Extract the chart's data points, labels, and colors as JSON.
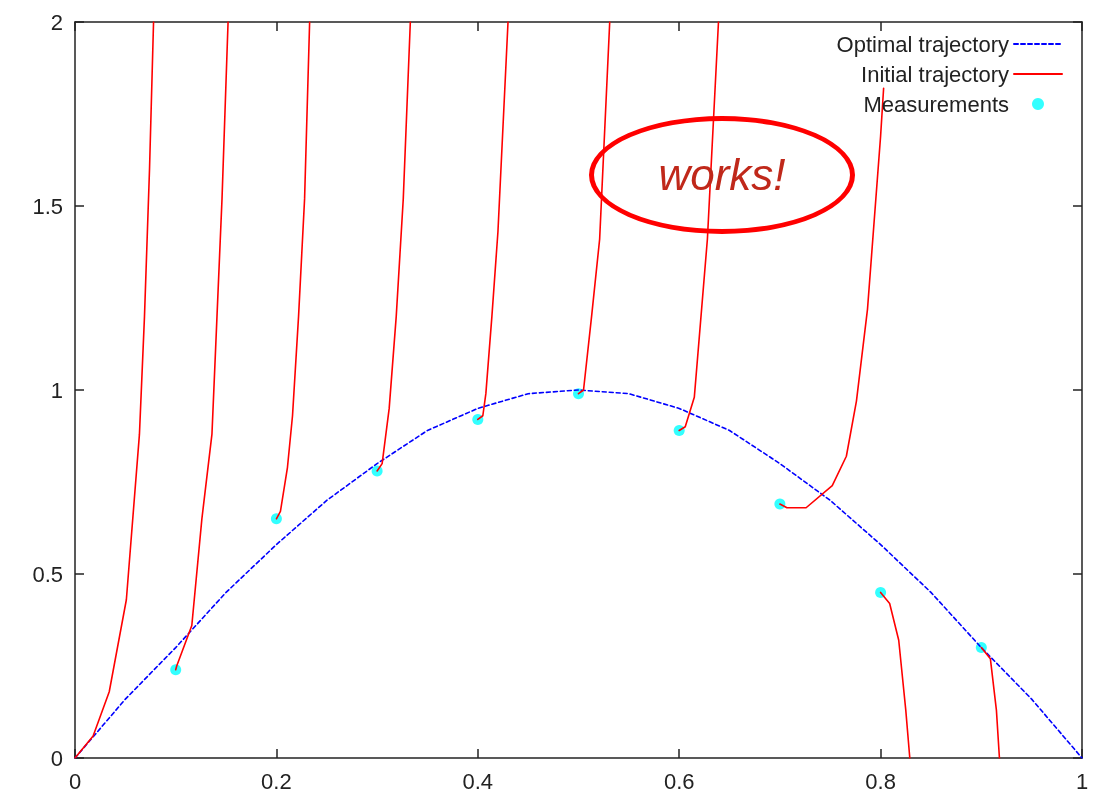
{
  "chart_data": {
    "type": "line",
    "xlim": [
      0,
      1
    ],
    "xticks": [
      0,
      0.2,
      0.4,
      0.6,
      0.8,
      1
    ],
    "ylim": [
      0,
      2
    ],
    "yticks": [
      0,
      0.5,
      1,
      1.5,
      2
    ],
    "grid": false,
    "legend": "top right",
    "annotations": [
      "works!"
    ],
    "series": [
      {
        "name": "Optimal trajectory",
        "color": "#0000ff",
        "line_style": "dashed",
        "marker": "none",
        "x": [
          0,
          0.05,
          0.1,
          0.15,
          0.2,
          0.25,
          0.3,
          0.35,
          0.4,
          0.45,
          0.5,
          0.55,
          0.6,
          0.65,
          0.7,
          0.75,
          0.8,
          0.85,
          0.9,
          0.95,
          1
        ],
        "values": [
          0,
          0.16,
          0.3,
          0.45,
          0.58,
          0.7,
          0.8,
          0.89,
          0.95,
          0.99,
          1.0,
          0.99,
          0.95,
          0.89,
          0.8,
          0.7,
          0.58,
          0.45,
          0.3,
          0.16,
          0
        ]
      },
      {
        "name": "Initial trajectory",
        "color": "#ff0000",
        "line_style": "solid",
        "marker": "none",
        "x": [
          0,
          0.018,
          0.034,
          0.051,
          0.064,
          0.069,
          0.074,
          0.078
        ],
        "values": [
          0,
          0.06,
          0.18,
          0.43,
          0.88,
          1.2,
          1.6,
          2
        ]
      },
      {
        "color": "#ff0000",
        "line_style": "solid",
        "marker": "none",
        "x": [
          0.1,
          0.101,
          0.116,
          0.126,
          0.136,
          0.141,
          0.146,
          0.152
        ],
        "values": [
          0.24,
          0.25,
          0.36,
          0.65,
          0.88,
          1.2,
          1.52,
          2
        ]
      },
      {
        "color": "#ff0000",
        "line_style": "solid",
        "marker": "none",
        "x": [
          0.2,
          0.204,
          0.211,
          0.216,
          0.222,
          0.228,
          0.233
        ],
        "values": [
          0.65,
          0.67,
          0.79,
          0.93,
          1.2,
          1.52,
          2
        ]
      },
      {
        "color": "#ff0000",
        "line_style": "solid",
        "marker": "none",
        "x": [
          0.3,
          0.305,
          0.312,
          0.319,
          0.326,
          0.333
        ],
        "values": [
          0.78,
          0.8,
          0.95,
          1.2,
          1.52,
          2
        ]
      },
      {
        "color": "#ff0000",
        "line_style": "solid",
        "marker": "none",
        "x": [
          0.4,
          0.405,
          0.408,
          0.414,
          0.42,
          0.43
        ],
        "values": [
          0.92,
          0.93,
          0.99,
          1.2,
          1.43,
          2
        ]
      },
      {
        "color": "#ff0000",
        "line_style": "solid",
        "marker": "none",
        "x": [
          0.5,
          0.505,
          0.513,
          0.521,
          0.531
        ],
        "values": [
          0.99,
          1.0,
          1.2,
          1.41,
          2
        ]
      },
      {
        "color": "#ff0000",
        "line_style": "solid",
        "marker": "none",
        "x": [
          0.6,
          0.606,
          0.615,
          0.628,
          0.639
        ],
        "values": [
          0.89,
          0.9,
          0.98,
          1.41,
          2
        ]
      },
      {
        "color": "#ff0000",
        "line_style": "solid",
        "marker": "none",
        "x": [
          0.7,
          0.707,
          0.726,
          0.752,
          0.766,
          0.776,
          0.787,
          0.8,
          0.803
        ],
        "values": [
          0.69,
          0.68,
          0.68,
          0.74,
          0.82,
          0.97,
          1.22,
          1.69,
          1.82
        ]
      },
      {
        "color": "#ff0000",
        "line_style": "solid",
        "marker": "none",
        "x": [
          0.8,
          0.809,
          0.818,
          0.825,
          0.829
        ],
        "values": [
          0.45,
          0.42,
          0.32,
          0.13,
          0
        ]
      },
      {
        "color": "#ff0000",
        "line_style": "solid",
        "marker": "none",
        "x": [
          0.9,
          0.909,
          0.915,
          0.918
        ],
        "values": [
          0.3,
          0.27,
          0.13,
          0
        ]
      },
      {
        "name": "Measurements",
        "type": "scatter",
        "color": "#00ffff",
        "marker": "circle",
        "x": [
          0.1,
          0.2,
          0.3,
          0.4,
          0.5,
          0.6,
          0.7,
          0.8,
          0.9
        ],
        "values": [
          0.24,
          0.65,
          0.78,
          0.92,
          0.99,
          0.89,
          0.69,
          0.45,
          0.3
        ]
      }
    ]
  }
}
